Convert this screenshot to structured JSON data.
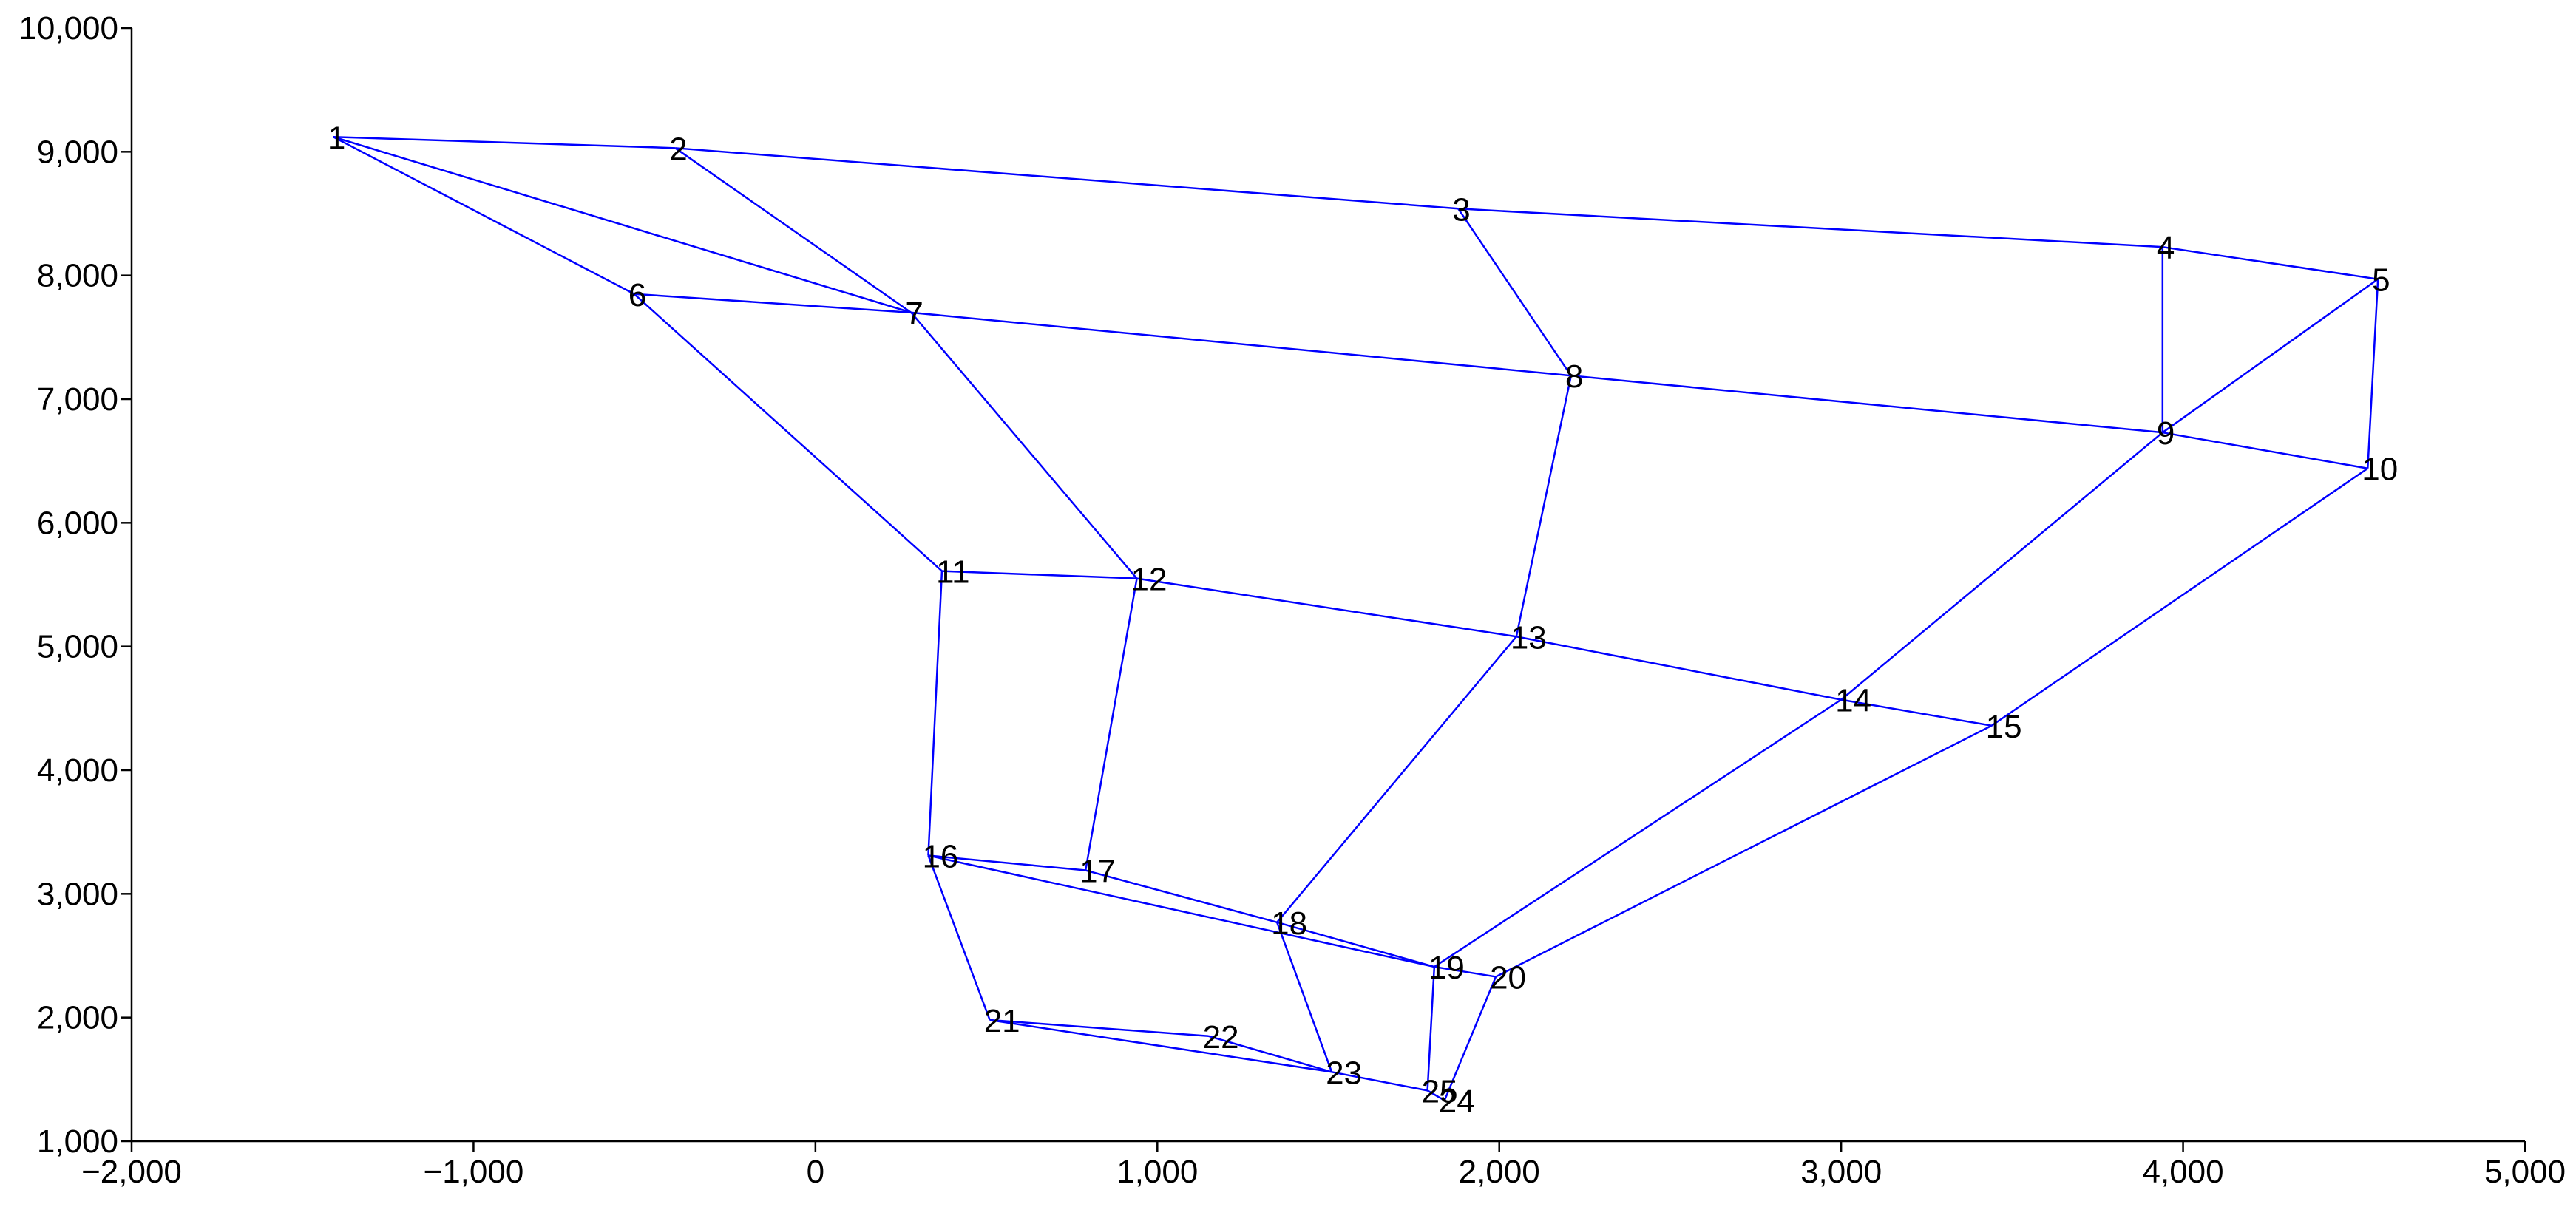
{
  "chart_data": {
    "type": "network",
    "nodes": [
      {
        "label": "1",
        "x": -1410,
        "y": 9120
      },
      {
        "label": "2",
        "x": -410,
        "y": 9030
      },
      {
        "label": "3",
        "x": 1880,
        "y": 8540
      },
      {
        "label": "4",
        "x": 3940,
        "y": 8230
      },
      {
        "label": "5",
        "x": 4570,
        "y": 7970
      },
      {
        "label": "6",
        "x": -530,
        "y": 7850
      },
      {
        "label": "7",
        "x": 280,
        "y": 7700
      },
      {
        "label": "8",
        "x": 2210,
        "y": 7190
      },
      {
        "label": "9",
        "x": 3940,
        "y": 6730
      },
      {
        "label": "10",
        "x": 4540,
        "y": 6440
      },
      {
        "label": "11",
        "x": 370,
        "y": 5610
      },
      {
        "label": "12",
        "x": 940,
        "y": 5550
      },
      {
        "label": "13",
        "x": 2050,
        "y": 5080
      },
      {
        "label": "14",
        "x": 3000,
        "y": 4570
      },
      {
        "label": "15",
        "x": 3440,
        "y": 4360
      },
      {
        "label": "16",
        "x": 330,
        "y": 3310
      },
      {
        "label": "17",
        "x": 790,
        "y": 3190
      },
      {
        "label": "18",
        "x": 1350,
        "y": 2770
      },
      {
        "label": "19",
        "x": 1810,
        "y": 2410
      },
      {
        "label": "20",
        "x": 1990,
        "y": 2330
      },
      {
        "label": "21",
        "x": 510,
        "y": 1980
      },
      {
        "label": "22",
        "x": 1150,
        "y": 1850
      },
      {
        "label": "23",
        "x": 1510,
        "y": 1560
      },
      {
        "label": "24",
        "x": 1840,
        "y": 1330
      },
      {
        "label": "25",
        "x": 1790,
        "y": 1410
      }
    ],
    "edges": [
      [
        0,
        1
      ],
      [
        1,
        2
      ],
      [
        2,
        3
      ],
      [
        3,
        4
      ],
      [
        5,
        6
      ],
      [
        6,
        7
      ],
      [
        7,
        8
      ],
      [
        8,
        9
      ],
      [
        0,
        5
      ],
      [
        0,
        6
      ],
      [
        1,
        6
      ],
      [
        2,
        7
      ],
      [
        3,
        8
      ],
      [
        4,
        9
      ],
      [
        4,
        8
      ],
      [
        5,
        10
      ],
      [
        6,
        11
      ],
      [
        7,
        12
      ],
      [
        8,
        13
      ],
      [
        9,
        14
      ],
      [
        10,
        11
      ],
      [
        11,
        12
      ],
      [
        12,
        13
      ],
      [
        13,
        14
      ],
      [
        10,
        15
      ],
      [
        11,
        16
      ],
      [
        12,
        17
      ],
      [
        13,
        18
      ],
      [
        14,
        19
      ],
      [
        15,
        16
      ],
      [
        16,
        17
      ],
      [
        17,
        18
      ],
      [
        18,
        19
      ],
      [
        15,
        18
      ],
      [
        15,
        20
      ],
      [
        17,
        22
      ],
      [
        18,
        24
      ],
      [
        19,
        23
      ],
      [
        20,
        21
      ],
      [
        21,
        22
      ],
      [
        20,
        22
      ],
      [
        22,
        24
      ],
      [
        23,
        24
      ]
    ],
    "color": "#0000ff",
    "xlim": [
      -2000,
      5000
    ],
    "xticks": [
      {
        "value": -2000,
        "label": "−2,000"
      },
      {
        "value": -1000,
        "label": "−1,000"
      },
      0,
      {
        "value": 1000,
        "label": "1,000"
      },
      {
        "value": 2000,
        "label": "2,000"
      },
      {
        "value": 3000,
        "label": "3,000"
      },
      {
        "value": 4000,
        "label": "4,000"
      },
      {
        "value": 5000,
        "label": "5,000"
      }
    ],
    "ylim": [
      1000,
      10000
    ],
    "yticks": [
      {
        "value": 1000,
        "label": "1,000"
      },
      {
        "value": 2000,
        "label": "2,000"
      },
      {
        "value": 3000,
        "label": "3,000"
      },
      {
        "value": 4000,
        "label": "4,000"
      },
      {
        "value": 5000,
        "label": "5,000"
      },
      {
        "value": 6000,
        "label": "6,000"
      },
      {
        "value": 7000,
        "label": "7,000"
      },
      {
        "value": 8000,
        "label": "8,000"
      },
      {
        "value": 9000,
        "label": "9,000"
      },
      {
        "value": 10000,
        "label": "10,000"
      }
    ],
    "grid": false
  }
}
